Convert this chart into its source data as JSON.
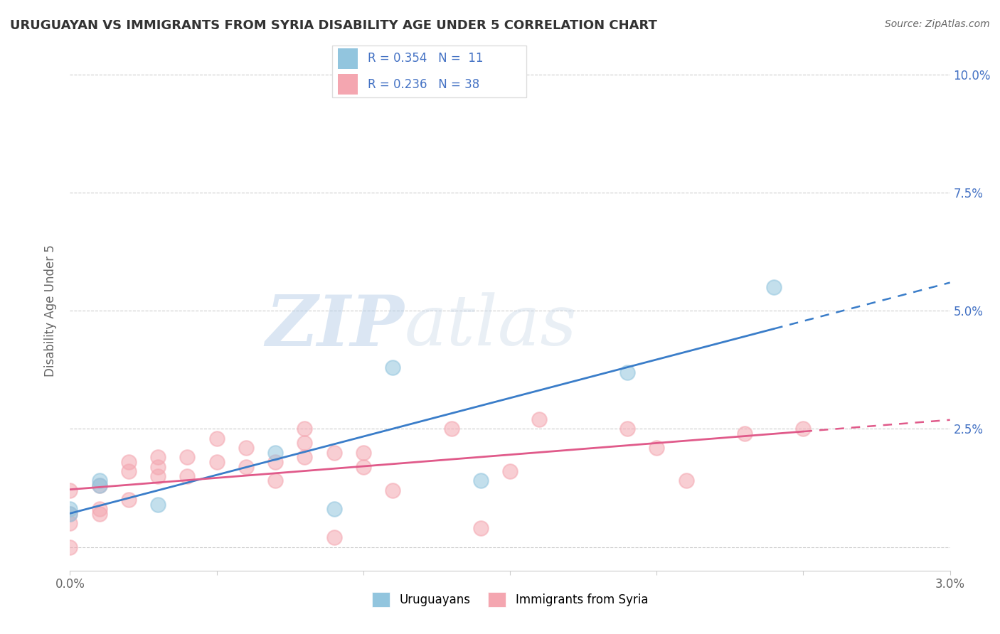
{
  "title": "URUGUAYAN VS IMMIGRANTS FROM SYRIA DISABILITY AGE UNDER 5 CORRELATION CHART",
  "source": "Source: ZipAtlas.com",
  "ylabel": "Disability Age Under 5",
  "R_uruguayan": 0.354,
  "N_uruguayan": 11,
  "R_syria": 0.236,
  "N_syria": 38,
  "uruguayan_color": "#92c5de",
  "syria_color": "#f4a6b0",
  "uruguayan_line_color": "#3a7dc9",
  "syria_line_color": "#e05a8a",
  "watermark_zip": "ZIP",
  "watermark_atlas": "atlas",
  "xlim": [
    0.0,
    0.03
  ],
  "ylim": [
    -0.005,
    0.105
  ],
  "yticks": [
    0.0,
    0.025,
    0.05,
    0.075,
    0.1
  ],
  "ytick_labels": [
    "",
    "2.5%",
    "5.0%",
    "7.5%",
    "10.0%"
  ],
  "xticks": [
    0.0,
    0.005,
    0.01,
    0.015,
    0.02,
    0.025,
    0.03
  ],
  "xtick_labels": [
    "0.0%",
    "",
    "",
    "",
    "",
    "",
    "3.0%"
  ],
  "uruguayan_x": [
    0.0,
    0.0,
    0.001,
    0.001,
    0.003,
    0.007,
    0.009,
    0.011,
    0.014,
    0.019,
    0.024
  ],
  "uruguayan_y": [
    0.008,
    0.007,
    0.013,
    0.014,
    0.009,
    0.02,
    0.008,
    0.038,
    0.014,
    0.037,
    0.055
  ],
  "syria_x": [
    0.0,
    0.0,
    0.0,
    0.0,
    0.001,
    0.001,
    0.001,
    0.002,
    0.002,
    0.002,
    0.003,
    0.003,
    0.003,
    0.004,
    0.004,
    0.005,
    0.005,
    0.006,
    0.006,
    0.007,
    0.007,
    0.008,
    0.008,
    0.008,
    0.009,
    0.009,
    0.01,
    0.01,
    0.011,
    0.013,
    0.014,
    0.015,
    0.016,
    0.019,
    0.02,
    0.021,
    0.023,
    0.025
  ],
  "syria_y": [
    0.0,
    0.005,
    0.007,
    0.012,
    0.007,
    0.008,
    0.013,
    0.01,
    0.016,
    0.018,
    0.015,
    0.017,
    0.019,
    0.015,
    0.019,
    0.018,
    0.023,
    0.017,
    0.021,
    0.014,
    0.018,
    0.019,
    0.022,
    0.025,
    0.002,
    0.02,
    0.017,
    0.02,
    0.012,
    0.025,
    0.004,
    0.016,
    0.027,
    0.025,
    0.021,
    0.014,
    0.024,
    0.025
  ],
  "background_color": "#ffffff",
  "grid_color": "#cccccc",
  "title_color": "#333333",
  "axis_color": "#666666",
  "tick_color": "#4472c4",
  "legend_text_color": "#4472c4"
}
